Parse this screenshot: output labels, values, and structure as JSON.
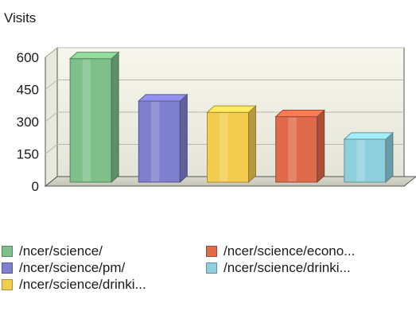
{
  "chart_data": {
    "type": "bar",
    "ylabel": "Visits",
    "ylim": [
      0,
      600
    ],
    "yticks": [
      0,
      150,
      300,
      450,
      600
    ],
    "grid": true,
    "legend_position": "bottom",
    "series": [
      {
        "name": "/ncer/science/",
        "value": 575,
        "color": "#7fbf8a"
      },
      {
        "name": "/ncer/science/pm/",
        "value": 378,
        "color": "#7f7fcf"
      },
      {
        "name": "/ncer/science/drinki...",
        "value": 325,
        "color": "#f2cc4f"
      },
      {
        "name": "/ncer/science/econo...",
        "value": 305,
        "color": "#e06b4a"
      },
      {
        "name": "/ncer/science/drinki...",
        "value": 200,
        "color": "#8fcfdb"
      }
    ]
  }
}
